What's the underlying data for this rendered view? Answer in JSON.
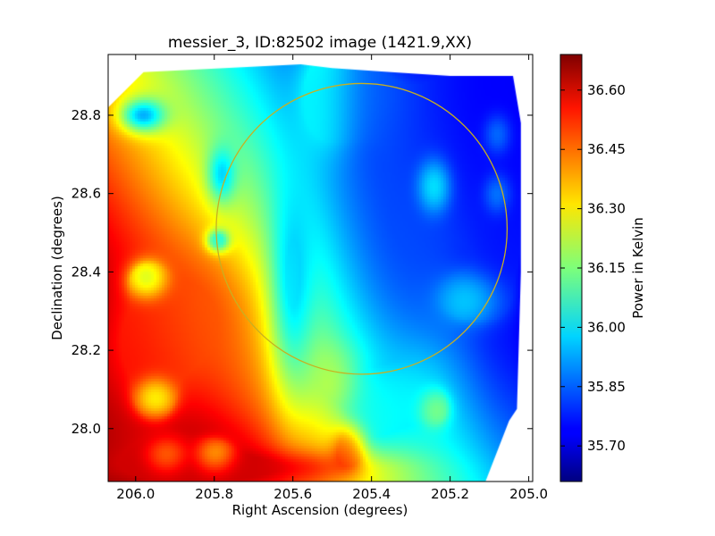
{
  "chart_data": {
    "type": "heatmap",
    "title": "messier_3, ID:82502 image (1421.9,XX)",
    "xlabel": "Right Ascension (degrees)",
    "ylabel": "Declination (degrees)",
    "xlim": [
      206.07,
      204.99
    ],
    "ylim": [
      27.865,
      28.955
    ],
    "x_ticks": [
      {
        "value": 206.0,
        "label": "206.0"
      },
      {
        "value": 205.8,
        "label": "205.8"
      },
      {
        "value": 205.6,
        "label": "205.6"
      },
      {
        "value": 205.4,
        "label": "205.4"
      },
      {
        "value": 205.2,
        "label": "205.2"
      },
      {
        "value": 205.0,
        "label": "205.0"
      }
    ],
    "y_ticks": [
      {
        "value": 28.0,
        "label": "28.0"
      },
      {
        "value": 28.2,
        "label": "28.2"
      },
      {
        "value": 28.4,
        "label": "28.4"
      },
      {
        "value": 28.6,
        "label": "28.6"
      },
      {
        "value": 28.8,
        "label": "28.8"
      }
    ],
    "colormap": "jet",
    "colorbar": {
      "label": "Power in Kelvin",
      "min": 35.61,
      "max": 36.69,
      "ticks": [
        {
          "value": 35.7,
          "label": "35.70"
        },
        {
          "value": 35.85,
          "label": "35.85"
        },
        {
          "value": 36.0,
          "label": "36.00"
        },
        {
          "value": 36.15,
          "label": "36.15"
        },
        {
          "value": 36.3,
          "label": "36.30"
        },
        {
          "value": 36.45,
          "label": "36.45"
        },
        {
          "value": 36.6,
          "label": "36.60"
        }
      ]
    },
    "overlay_circle": {
      "center_ra": 205.425,
      "center_dec": 28.51,
      "radius_deg": 0.37,
      "color": "#c8b020"
    },
    "grid": false,
    "field_boundary": [
      [
        206.07,
        28.82
      ],
      [
        205.98,
        28.91
      ],
      [
        205.58,
        28.93
      ],
      [
        205.5,
        28.92
      ],
      [
        205.35,
        28.91
      ],
      [
        205.2,
        28.9
      ],
      [
        205.04,
        28.9
      ],
      [
        205.02,
        28.78
      ],
      [
        205.02,
        28.4
      ],
      [
        205.03,
        28.05
      ],
      [
        205.05,
        28.02
      ],
      [
        205.11,
        27.865
      ],
      [
        206.07,
        27.865
      ]
    ],
    "base_surface": {
      "a": 36.03,
      "ra_coef": 0.95,
      "ra_ref": 205.45,
      "dec_coef": -0.55,
      "dec_ref": 28.4,
      "clip": [
        35.62,
        36.68
      ]
    },
    "features": [
      {
        "ra": 205.3,
        "dec": 28.55,
        "value": 35.83,
        "spread_ra": 0.13,
        "spread_dec": 0.3
      },
      {
        "ra": 205.12,
        "dec": 28.78,
        "value": 35.72,
        "spread_ra": 0.12,
        "spread_dec": 0.18
      },
      {
        "ra": 205.06,
        "dec": 28.55,
        "value": 35.76,
        "spread_ra": 0.06,
        "spread_dec": 0.3
      },
      {
        "ra": 205.45,
        "dec": 28.85,
        "value": 35.86,
        "spread_ra": 0.08,
        "spread_dec": 0.08
      },
      {
        "ra": 205.98,
        "dec": 28.2,
        "value": 36.55,
        "spread_ra": 0.1,
        "spread_dec": 0.15
      },
      {
        "ra": 205.85,
        "dec": 28.28,
        "value": 36.45,
        "spread_ra": 0.1,
        "spread_dec": 0.12
      },
      {
        "ra": 205.9,
        "dec": 27.93,
        "value": 36.62,
        "spread_ra": 0.14,
        "spread_dec": 0.06
      },
      {
        "ra": 205.46,
        "dec": 27.95,
        "value": 36.52,
        "spread_ra": 0.03,
        "spread_dec": 0.04
      },
      {
        "ra": 205.75,
        "dec": 27.9,
        "value": 36.6,
        "spread_ra": 0.2,
        "spread_dec": 0.03
      },
      {
        "ra": 205.52,
        "dec": 28.85,
        "value": 36.1,
        "spread_ra": 0.05,
        "spread_dec": 0.1
      },
      {
        "ra": 205.24,
        "dec": 28.62,
        "value": 36.22,
        "spread_ra": 0.025,
        "spread_dec": 0.04
      },
      {
        "ra": 205.24,
        "dec": 28.05,
        "value": 36.25,
        "spread_ra": 0.025,
        "spread_dec": 0.03
      },
      {
        "ra": 205.08,
        "dec": 28.75,
        "value": 36.05,
        "spread_ra": 0.02,
        "spread_dec": 0.03
      },
      {
        "ra": 205.08,
        "dec": 28.6,
        "value": 36.05,
        "spread_ra": 0.02,
        "spread_dec": 0.03
      },
      {
        "ra": 205.15,
        "dec": 28.33,
        "value": 36.05,
        "spread_ra": 0.05,
        "spread_dec": 0.04
      },
      {
        "ra": 205.3,
        "dec": 28.08,
        "value": 36.05,
        "spread_ra": 0.06,
        "spread_dec": 0.08
      },
      {
        "ra": 205.6,
        "dec": 28.4,
        "value": 35.98,
        "spread_ra": 0.04,
        "spread_dec": 0.2
      },
      {
        "ra": 205.98,
        "dec": 28.8,
        "value": 35.93,
        "spread_ra": 0.04,
        "spread_dec": 0.03
      },
      {
        "ra": 205.78,
        "dec": 28.65,
        "value": 35.97,
        "spread_ra": 0.025,
        "spread_dec": 0.05
      },
      {
        "ra": 205.79,
        "dec": 28.48,
        "value": 35.97,
        "spread_ra": 0.02,
        "spread_dec": 0.02
      },
      {
        "ra": 205.97,
        "dec": 28.38,
        "value": 36.05,
        "spread_ra": 0.03,
        "spread_dec": 0.03
      },
      {
        "ra": 205.95,
        "dec": 28.08,
        "value": 36.1,
        "spread_ra": 0.03,
        "spread_dec": 0.03
      },
      {
        "ra": 205.8,
        "dec": 27.93,
        "value": 36.15,
        "spread_ra": 0.03,
        "spread_dec": 0.025
      },
      {
        "ra": 205.92,
        "dec": 27.93,
        "value": 36.25,
        "spread_ra": 0.03,
        "spread_dec": 0.025
      },
      {
        "ra": 205.5,
        "dec": 28.12,
        "value": 36.25,
        "spread_ra": 0.05,
        "spread_dec": 0.06
      },
      {
        "ra": 205.4,
        "dec": 28.05,
        "value": 36.05,
        "spread_ra": 0.05,
        "spread_dec": 0.08
      }
    ]
  }
}
